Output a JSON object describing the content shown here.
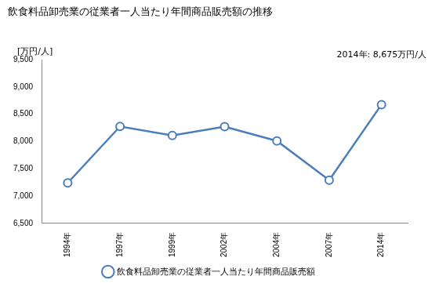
{
  "chart_data": {
    "type": "line",
    "title": "飲食料品卸売業の従業者一人当たり年間商品販売額の推移",
    "ylabel": "[万円/人]",
    "annotation": "2014年: 8,675万円/人",
    "categories": [
      "1994年",
      "1997年",
      "1999年",
      "2002年",
      "2004年",
      "2007年",
      "2014年"
    ],
    "series": [
      {
        "name": "飲食料品卸売業の従業者一人当たり年間商品販売額",
        "color": "#4a7ebb",
        "marker": "circle",
        "values": [
          7240,
          8275,
          8110,
          8270,
          8010,
          7290,
          8675
        ]
      }
    ],
    "ylim": [
      6500,
      9500
    ],
    "yticks": [
      {
        "value": 6500,
        "label": "6,500"
      },
      {
        "value": 7000,
        "label": "7,000"
      },
      {
        "value": 7500,
        "label": "7,500"
      },
      {
        "value": 8000,
        "label": "8,000"
      },
      {
        "value": 8500,
        "label": "8,500"
      },
      {
        "value": 9000,
        "label": "9,000"
      },
      {
        "value": 9500,
        "label": "9,500"
      }
    ],
    "grid": false,
    "legend": "bottom"
  }
}
